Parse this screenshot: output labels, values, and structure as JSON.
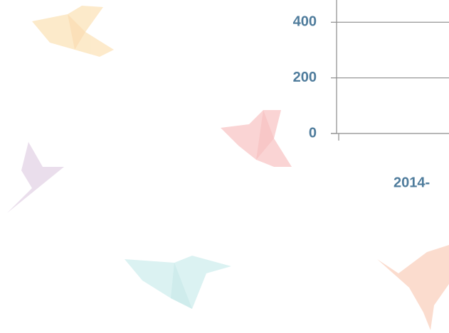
{
  "chart_data": {
    "type": "line",
    "categories": [
      "2014-"
    ],
    "ylim": [
      0,
      480
    ],
    "yticks": [
      0,
      200,
      400
    ],
    "grid": true
  }
}
